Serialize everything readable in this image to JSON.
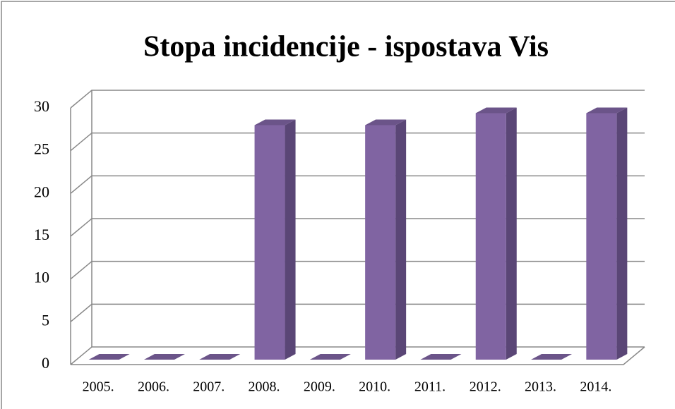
{
  "chart_data": {
    "type": "bar3d",
    "title": "Stopa incidencije - ispostava Vis",
    "categories": [
      "2005.",
      "2006.",
      "2007.",
      "2008.",
      "2009.",
      "2010.",
      "2011.",
      "2012.",
      "2013.",
      "2014."
    ],
    "values": [
      0,
      0,
      0,
      27.4,
      0,
      27.4,
      0,
      28.8,
      0,
      28.8
    ],
    "color": "#8064a2",
    "ylim": [
      0,
      30
    ],
    "yticks": [
      0,
      5,
      10,
      15,
      20,
      25,
      30
    ],
    "grid": true
  }
}
